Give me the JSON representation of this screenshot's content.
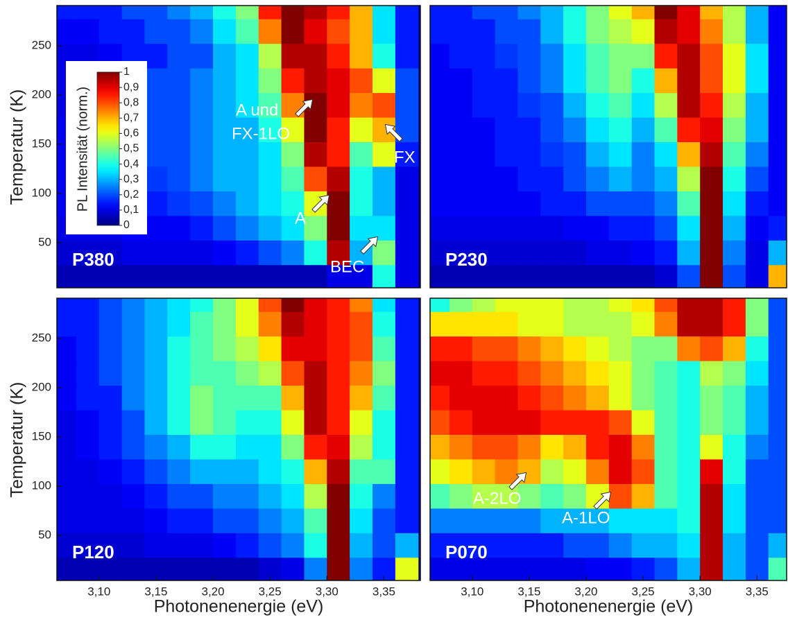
{
  "chart_data": [
    {
      "type": "heatmap",
      "label": "P380",
      "colormap": "jet",
      "x": [
        3.07,
        3.09,
        3.11,
        3.13,
        3.15,
        3.17,
        3.19,
        3.21,
        3.23,
        3.25,
        3.27,
        3.29,
        3.31,
        3.33,
        3.35,
        3.37
      ],
      "y": [
        15,
        40,
        65,
        90,
        115,
        140,
        165,
        190,
        215,
        240,
        265,
        290
      ],
      "z": [
        [
          0.05,
          0.05,
          0.05,
          0.05,
          0.05,
          0.05,
          0.05,
          0.05,
          0.05,
          0.05,
          0.05,
          0.05,
          0.1,
          0.1,
          0.4,
          0.1
        ],
        [
          0.08,
          0.08,
          0.08,
          0.1,
          0.1,
          0.1,
          0.1,
          0.12,
          0.15,
          0.2,
          0.25,
          0.4,
          0.95,
          0.3,
          0.5,
          0.1
        ],
        [
          0.1,
          0.1,
          0.1,
          0.12,
          0.12,
          0.12,
          0.15,
          0.2,
          0.25,
          0.3,
          0.35,
          0.5,
          1,
          0.35,
          0.35,
          0.1
        ],
        [
          0.12,
          0.12,
          0.12,
          0.15,
          0.15,
          0.18,
          0.2,
          0.25,
          0.3,
          0.35,
          0.4,
          0.6,
          1,
          0.4,
          0.3,
          0.1
        ],
        [
          0.12,
          0.12,
          0.15,
          0.15,
          0.18,
          0.2,
          0.25,
          0.3,
          0.3,
          0.35,
          0.45,
          0.8,
          0.95,
          0.4,
          0.3,
          0.1
        ],
        [
          0.12,
          0.12,
          0.15,
          0.15,
          0.2,
          0.2,
          0.25,
          0.3,
          0.3,
          0.35,
          0.5,
          0.95,
          0.85,
          0.45,
          0.6,
          0.15
        ],
        [
          0.12,
          0.12,
          0.15,
          0.15,
          0.2,
          0.2,
          0.25,
          0.3,
          0.3,
          0.4,
          0.6,
          1,
          0.85,
          0.6,
          0.7,
          0.2
        ],
        [
          0.1,
          0.12,
          0.15,
          0.15,
          0.2,
          0.2,
          0.25,
          0.3,
          0.35,
          0.45,
          0.75,
          1,
          0.9,
          0.75,
          0.8,
          0.2
        ],
        [
          0.1,
          0.12,
          0.12,
          0.15,
          0.2,
          0.2,
          0.25,
          0.3,
          0.35,
          0.5,
          0.85,
          0.95,
          0.9,
          0.8,
          0.6,
          0.2
        ],
        [
          0.1,
          0.1,
          0.12,
          0.15,
          0.15,
          0.2,
          0.2,
          0.3,
          0.35,
          0.55,
          0.95,
          0.95,
          0.85,
          0.7,
          0.4,
          0.15
        ],
        [
          0.12,
          0.12,
          0.15,
          0.15,
          0.2,
          0.2,
          0.25,
          0.35,
          0.45,
          0.75,
          1,
          0.9,
          0.8,
          0.7,
          0.35,
          0.15
        ],
        [
          0.15,
          0.15,
          0.15,
          0.2,
          0.2,
          0.25,
          0.3,
          0.4,
          0.5,
          0.85,
          1,
          0.95,
          0.85,
          0.7,
          0.35,
          0.15
        ]
      ],
      "xlim": [
        3.063,
        3.382
      ],
      "ylim": [
        4,
        291
      ],
      "yticks": [
        50,
        100,
        150,
        200,
        250
      ],
      "ylabel": "Temperatur (K)",
      "annotations": [
        "A und",
        "FX-1LO",
        "FX",
        "A",
        "BEC"
      ],
      "colorbar": {
        "label": "PL Intensität (norm.)",
        "lim": [
          0,
          1
        ],
        "ticks": [
          0,
          {
            "value": 0.1,
            "label": "0,1"
          },
          {
            "value": 0.2,
            "label": "0,2"
          },
          {
            "value": 0.3,
            "label": "0,3"
          },
          {
            "value": 0.4,
            "label": "0,4"
          },
          {
            "value": 0.5,
            "label": "0,5"
          },
          {
            "value": 0.6,
            "label": "0,6"
          },
          {
            "value": 0.7,
            "label": "0,7"
          },
          {
            "value": 0.8,
            "label": "0,8"
          },
          {
            "value": 0.9,
            "label": "0,9"
          },
          1
        ]
      }
    },
    {
      "type": "heatmap",
      "label": "P230",
      "colormap": "jet",
      "x": [
        3.07,
        3.09,
        3.11,
        3.13,
        3.15,
        3.17,
        3.19,
        3.21,
        3.23,
        3.25,
        3.27,
        3.29,
        3.31,
        3.33,
        3.35,
        3.37
      ],
      "y": [
        15,
        40,
        65,
        90,
        115,
        140,
        165,
        190,
        215,
        240,
        265,
        290
      ],
      "z": [
        [
          0.05,
          0.05,
          0.05,
          0.05,
          0.05,
          0.05,
          0.05,
          0.05,
          0.05,
          0.05,
          0.08,
          0.2,
          1,
          0.2,
          0.1,
          0.7
        ],
        [
          0.08,
          0.08,
          0.08,
          0.08,
          0.08,
          0.08,
          0.08,
          0.1,
          0.1,
          0.12,
          0.15,
          0.3,
          1,
          0.25,
          0.1,
          0.3
        ],
        [
          0.1,
          0.1,
          0.1,
          0.1,
          0.1,
          0.1,
          0.12,
          0.12,
          0.15,
          0.15,
          0.2,
          0.35,
          1,
          0.3,
          0.12,
          0.15
        ],
        [
          0.12,
          0.12,
          0.12,
          0.12,
          0.12,
          0.15,
          0.15,
          0.2,
          0.2,
          0.2,
          0.25,
          0.45,
          1,
          0.35,
          0.15,
          0.12
        ],
        [
          0.12,
          0.12,
          0.12,
          0.12,
          0.15,
          0.15,
          0.2,
          0.25,
          0.3,
          0.25,
          0.3,
          0.55,
          1,
          0.4,
          0.2,
          0.12
        ],
        [
          0.12,
          0.12,
          0.12,
          0.15,
          0.15,
          0.18,
          0.2,
          0.3,
          0.35,
          0.25,
          0.35,
          0.7,
          0.95,
          0.45,
          0.25,
          0.12
        ],
        [
          0.12,
          0.12,
          0.12,
          0.15,
          0.15,
          0.2,
          0.25,
          0.35,
          0.4,
          0.3,
          0.45,
          0.85,
          0.9,
          0.5,
          0.3,
          0.12
        ],
        [
          0.12,
          0.12,
          0.15,
          0.15,
          0.18,
          0.2,
          0.3,
          0.4,
          0.45,
          0.35,
          0.55,
          0.95,
          0.85,
          0.55,
          0.3,
          0.12
        ],
        [
          0.12,
          0.12,
          0.15,
          0.15,
          0.2,
          0.25,
          0.35,
          0.45,
          0.5,
          0.4,
          0.7,
          0.95,
          0.8,
          0.6,
          0.35,
          0.12
        ],
        [
          0.12,
          0.15,
          0.15,
          0.18,
          0.2,
          0.25,
          0.35,
          0.45,
          0.5,
          0.5,
          0.85,
          0.95,
          0.8,
          0.6,
          0.35,
          0.12
        ],
        [
          0.15,
          0.15,
          0.15,
          0.2,
          0.2,
          0.3,
          0.4,
          0.5,
          0.55,
          0.6,
          0.95,
          0.9,
          0.75,
          0.55,
          0.3,
          0.12
        ],
        [
          0.15,
          0.15,
          0.2,
          0.2,
          0.25,
          0.3,
          0.4,
          0.5,
          0.6,
          0.7,
          1,
          0.9,
          0.7,
          0.55,
          0.3,
          0.12
        ]
      ],
      "xlim": [
        3.063,
        3.376
      ],
      "ylim": [
        4,
        291
      ]
    },
    {
      "type": "heatmap",
      "label": "P120",
      "colormap": "jet",
      "x": [
        3.07,
        3.09,
        3.11,
        3.13,
        3.15,
        3.17,
        3.19,
        3.21,
        3.23,
        3.25,
        3.27,
        3.29,
        3.31,
        3.33,
        3.35,
        3.37
      ],
      "y": [
        15,
        40,
        65,
        90,
        115,
        140,
        165,
        190,
        215,
        240,
        265,
        290
      ],
      "z": [
        [
          0.05,
          0.05,
          0.05,
          0.05,
          0.05,
          0.05,
          0.05,
          0.05,
          0.05,
          0.08,
          0.1,
          0.25,
          1,
          0.25,
          0.15,
          0.6
        ],
        [
          0.08,
          0.08,
          0.08,
          0.08,
          0.1,
          0.1,
          0.1,
          0.12,
          0.15,
          0.2,
          0.25,
          0.4,
          1,
          0.3,
          0.2,
          0.3
        ],
        [
          0.1,
          0.1,
          0.1,
          0.1,
          0.12,
          0.15,
          0.15,
          0.2,
          0.2,
          0.25,
          0.3,
          0.45,
          1,
          0.35,
          0.2,
          0.15
        ],
        [
          0.1,
          0.1,
          0.1,
          0.12,
          0.15,
          0.2,
          0.2,
          0.25,
          0.25,
          0.3,
          0.35,
          0.55,
          1,
          0.4,
          0.25,
          0.15
        ],
        [
          0.1,
          0.1,
          0.12,
          0.15,
          0.2,
          0.25,
          0.3,
          0.3,
          0.3,
          0.35,
          0.4,
          0.7,
          0.95,
          0.45,
          0.45,
          0.15
        ],
        [
          0.1,
          0.12,
          0.15,
          0.2,
          0.25,
          0.3,
          0.4,
          0.4,
          0.35,
          0.35,
          0.5,
          0.85,
          0.9,
          0.55,
          0.4,
          0.15
        ],
        [
          0.1,
          0.12,
          0.15,
          0.2,
          0.3,
          0.4,
          0.5,
          0.45,
          0.4,
          0.4,
          0.6,
          0.95,
          0.85,
          0.6,
          0.4,
          0.15
        ],
        [
          0.12,
          0.15,
          0.15,
          0.25,
          0.3,
          0.4,
          0.5,
          0.45,
          0.45,
          0.45,
          0.7,
          0.95,
          0.85,
          0.7,
          0.45,
          0.15
        ],
        [
          0.12,
          0.15,
          0.2,
          0.25,
          0.3,
          0.4,
          0.45,
          0.45,
          0.5,
          0.55,
          0.8,
          0.95,
          0.85,
          0.75,
          0.5,
          0.15
        ],
        [
          0.12,
          0.15,
          0.2,
          0.25,
          0.3,
          0.4,
          0.45,
          0.5,
          0.55,
          0.65,
          0.9,
          0.9,
          0.85,
          0.8,
          0.45,
          0.15
        ],
        [
          0.15,
          0.15,
          0.2,
          0.25,
          0.3,
          0.35,
          0.45,
          0.5,
          0.6,
          0.75,
          0.95,
          0.9,
          0.85,
          0.8,
          0.4,
          0.15
        ],
        [
          0.15,
          0.15,
          0.2,
          0.25,
          0.3,
          0.35,
          0.4,
          0.5,
          0.6,
          0.8,
          1,
          0.9,
          0.85,
          0.75,
          0.35,
          0.15
        ]
      ],
      "xlim": [
        3.063,
        3.382
      ],
      "ylim": [
        4,
        291
      ],
      "yticks": [
        50,
        100,
        150,
        200,
        250
      ],
      "xticks": [
        {
          "value": 3.1,
          "label": "3,10"
        },
        {
          "value": 3.15,
          "label": "3,15"
        },
        {
          "value": 3.2,
          "label": "3,20"
        },
        {
          "value": 3.25,
          "label": "3,25"
        },
        {
          "value": 3.3,
          "label": "3,30"
        },
        {
          "value": 3.35,
          "label": "3,35"
        }
      ],
      "xlabel": "Photonenenergie (eV)",
      "ylabel": "Temperatur (K)"
    },
    {
      "type": "heatmap",
      "label": "P070",
      "colormap": "jet",
      "x": [
        3.07,
        3.09,
        3.11,
        3.13,
        3.15,
        3.17,
        3.19,
        3.21,
        3.23,
        3.25,
        3.27,
        3.29,
        3.31,
        3.33,
        3.35,
        3.37
      ],
      "y": [
        15,
        40,
        65,
        90,
        115,
        140,
        165,
        190,
        215,
        240,
        265,
        290
      ],
      "z": [
        [
          0.1,
          0.1,
          0.1,
          0.1,
          0.1,
          0.1,
          0.1,
          0.12,
          0.12,
          0.15,
          0.2,
          0.3,
          0.95,
          0.3,
          0.2,
          0.45
        ],
        [
          0.15,
          0.15,
          0.15,
          0.15,
          0.15,
          0.15,
          0.2,
          0.2,
          0.25,
          0.3,
          0.3,
          0.35,
          0.95,
          0.3,
          0.2,
          0.3
        ],
        [
          0.25,
          0.25,
          0.25,
          0.25,
          0.25,
          0.3,
          0.3,
          0.3,
          0.35,
          0.35,
          0.35,
          0.4,
          0.95,
          0.35,
          0.2,
          0.2
        ],
        [
          0.45,
          0.5,
          0.55,
          0.55,
          0.5,
          0.45,
          0.5,
          0.6,
          0.8,
          0.7,
          0.45,
          0.4,
          0.95,
          0.35,
          0.2,
          0.2
        ],
        [
          0.6,
          0.65,
          0.7,
          0.75,
          0.7,
          0.55,
          0.6,
          0.75,
          0.9,
          0.8,
          0.45,
          0.4,
          0.9,
          0.4,
          0.2,
          0.2
        ],
        [
          0.7,
          0.75,
          0.8,
          0.8,
          0.75,
          0.65,
          0.7,
          0.85,
          0.9,
          0.75,
          0.45,
          0.4,
          0.6,
          0.4,
          0.25,
          0.2
        ],
        [
          0.8,
          0.85,
          0.9,
          0.9,
          0.9,
          0.85,
          0.85,
          0.85,
          0.8,
          0.6,
          0.45,
          0.4,
          0.5,
          0.45,
          0.3,
          0.2
        ],
        [
          0.85,
          0.9,
          0.9,
          0.9,
          0.85,
          0.8,
          0.75,
          0.7,
          0.6,
          0.5,
          0.45,
          0.4,
          0.5,
          0.45,
          0.3,
          0.2
        ],
        [
          0.9,
          0.9,
          0.85,
          0.85,
          0.8,
          0.75,
          0.7,
          0.65,
          0.6,
          0.5,
          0.45,
          0.4,
          0.55,
          0.5,
          0.35,
          0.2
        ],
        [
          0.85,
          0.85,
          0.8,
          0.8,
          0.75,
          0.7,
          0.65,
          0.6,
          0.55,
          0.5,
          0.5,
          0.75,
          0.8,
          0.7,
          0.4,
          0.2
        ],
        [
          0.65,
          0.65,
          0.65,
          0.65,
          0.6,
          0.6,
          0.55,
          0.55,
          0.55,
          0.6,
          0.75,
          0.95,
          0.95,
          0.85,
          0.5,
          0.2
        ],
        [
          0.4,
          0.5,
          0.55,
          0.6,
          0.6,
          0.6,
          0.55,
          0.55,
          0.6,
          0.65,
          0.8,
          0.95,
          0.95,
          0.85,
          0.5,
          0.2
        ]
      ],
      "xlim": [
        3.063,
        3.376
      ],
      "ylim": [
        4,
        291
      ],
      "xticks": [
        {
          "value": 3.1,
          "label": "3,10"
        },
        {
          "value": 3.15,
          "label": "3,15"
        },
        {
          "value": 3.2,
          "label": "3,20"
        },
        {
          "value": 3.25,
          "label": "3,25"
        },
        {
          "value": 3.3,
          "label": "3,30"
        },
        {
          "value": 3.35,
          "label": "3,35"
        }
      ],
      "xlabel": "Photonenenergie (eV)",
      "annotations": [
        "A-2LO",
        "A-1LO"
      ]
    }
  ]
}
